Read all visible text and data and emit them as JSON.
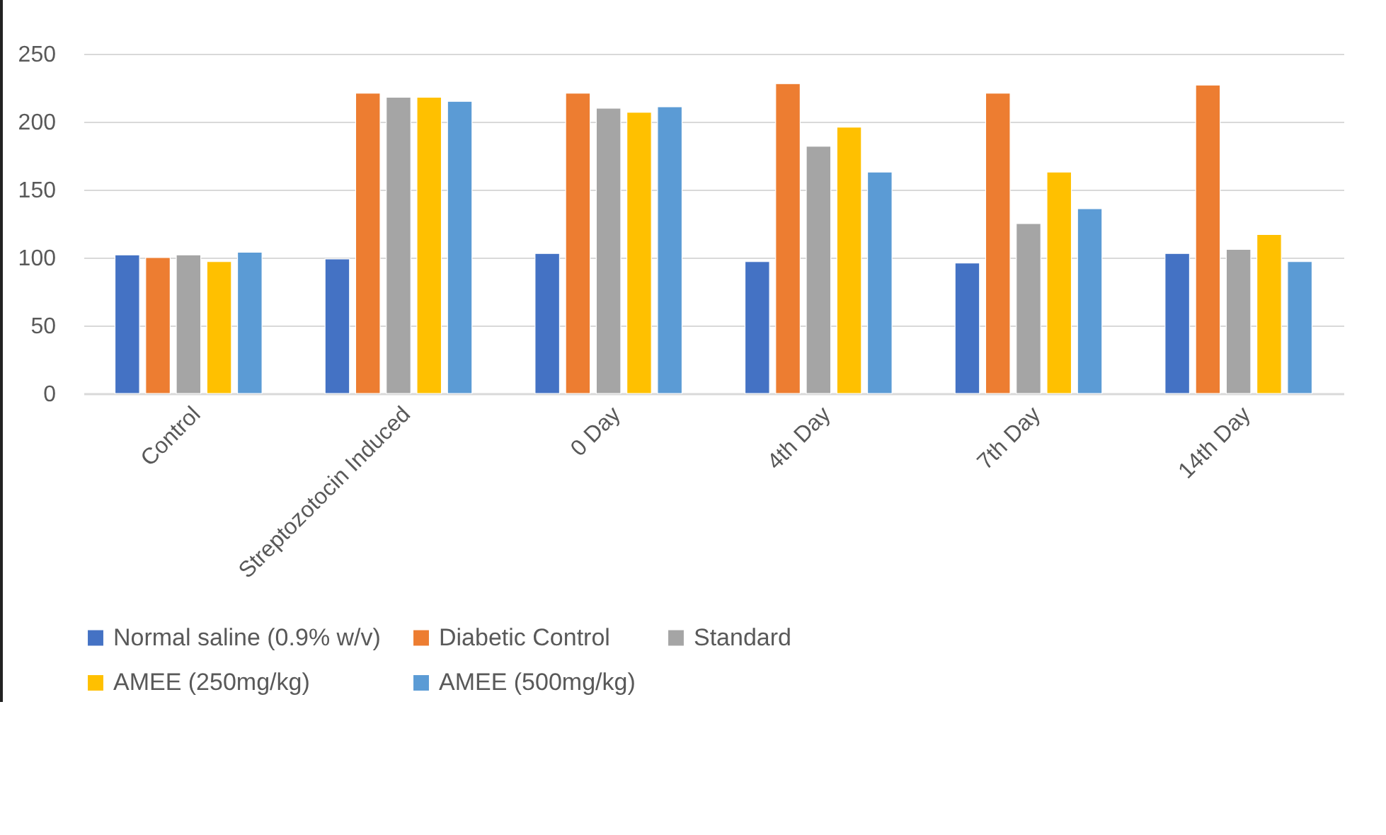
{
  "chart_data": {
    "type": "bar",
    "categories": [
      "Control",
      "Streptozotocin Induced",
      "0 Day",
      "4th Day",
      "7th Day",
      "14th Day"
    ],
    "series": [
      {
        "name": "Normal saline (0.9% w/v)",
        "color": "#4472c4",
        "values": [
          102,
          99,
          103,
          97,
          96,
          103
        ]
      },
      {
        "name": "Diabetic  Control",
        "color": "#ed7d31",
        "values": [
          100,
          221,
          221,
          228,
          221,
          227
        ]
      },
      {
        "name": "Standard",
        "color": "#a5a5a5",
        "values": [
          102,
          218,
          210,
          182,
          125,
          106
        ]
      },
      {
        "name": "AMEE (250mg/kg)",
        "color": "#ffc000",
        "values": [
          97,
          218,
          207,
          196,
          163,
          117
        ]
      },
      {
        "name": "AMEE (500mg/kg)",
        "color": "#5b9bd5",
        "values": [
          104,
          215,
          211,
          163,
          136,
          97
        ]
      }
    ],
    "ylim": [
      0,
      250
    ],
    "yticks": [
      0,
      50,
      100,
      150,
      200,
      250
    ],
    "grid": "y",
    "legend": "bottom"
  }
}
